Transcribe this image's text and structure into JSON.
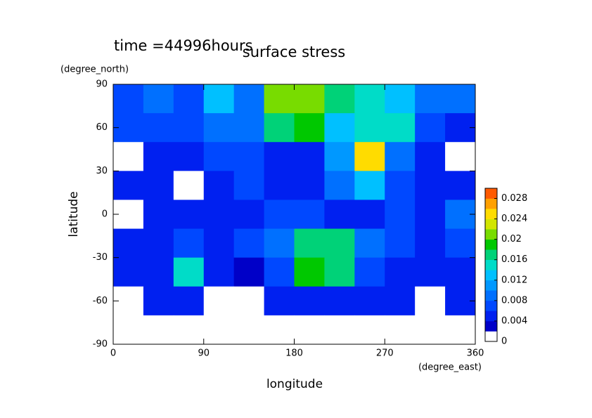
{
  "chart_data": {
    "type": "contour",
    "title": "surface stress",
    "subtitle": "time =44996hours",
    "x_label": "longitude",
    "x_unit": "(degree_east)",
    "y_label": "latitude",
    "y_unit": "(degree_north)",
    "x": [
      15,
      45,
      75,
      105,
      135,
      165,
      195,
      225,
      255,
      285,
      315,
      345
    ],
    "y": [
      80,
      60,
      40,
      20,
      0,
      -20,
      -40,
      -60,
      -80
    ],
    "z": [
      [
        0.006,
        0.008,
        0.006,
        0.012,
        0.008,
        0.02,
        0.02,
        0.016,
        0.014,
        0.012,
        0.008,
        0.008
      ],
      [
        0.006,
        0.006,
        0.006,
        0.008,
        0.008,
        0.016,
        0.018,
        0.012,
        0.014,
        0.014,
        0.006,
        0.004
      ],
      [
        0.001,
        0.004,
        0.004,
        0.006,
        0.006,
        0.004,
        0.004,
        0.01,
        0.024,
        0.008,
        0.004,
        0.001
      ],
      [
        0.004,
        0.004,
        0.001,
        0.004,
        0.006,
        0.004,
        0.004,
        0.008,
        0.012,
        0.006,
        0.004,
        0.004
      ],
      [
        0.001,
        0.004,
        0.004,
        0.004,
        0.004,
        0.006,
        0.006,
        0.004,
        0.004,
        0.006,
        0.004,
        0.008
      ],
      [
        0.004,
        0.004,
        0.006,
        0.004,
        0.006,
        0.008,
        0.016,
        0.016,
        0.008,
        0.006,
        0.004,
        0.006
      ],
      [
        0.004,
        0.004,
        0.014,
        0.004,
        0.002,
        0.006,
        0.018,
        0.016,
        0.006,
        0.004,
        0.004,
        0.004
      ],
      [
        0.001,
        0.004,
        0.004,
        0.001,
        0.001,
        0.004,
        0.004,
        0.004,
        0.004,
        0.004,
        0.001,
        0.004
      ],
      [
        0.001,
        0.001,
        0.001,
        0.001,
        0.001,
        0.001,
        0.001,
        0.001,
        0.001,
        0.001,
        0.001,
        0.001
      ]
    ],
    "xlim": [
      0,
      360
    ],
    "xticks": [
      0,
      90,
      180,
      270,
      360
    ],
    "ylim": [
      -90,
      90
    ],
    "yticks": [
      -90,
      -60,
      -30,
      0,
      30,
      60,
      90
    ],
    "levels": [
      0,
      0.002,
      0.004,
      0.006,
      0.008,
      0.01,
      0.012,
      0.014,
      0.016,
      0.018,
      0.02,
      0.022,
      0.024,
      0.026,
      0.028,
      0.03
    ],
    "colors": [
      "#ffffff",
      "#0000c8",
      "#0020f0",
      "#0048ff",
      "#0070ff",
      "#0098ff",
      "#00c0ff",
      "#00dcc8",
      "#00d278",
      "#00c800",
      "#78dc00",
      "#d2e600",
      "#ffdc00",
      "#ffa000",
      "#ff5a00"
    ],
    "colorbar_ticks": [
      0,
      0.004,
      0.008,
      0.012,
      0.016,
      0.02,
      0.024,
      0.028
    ]
  }
}
